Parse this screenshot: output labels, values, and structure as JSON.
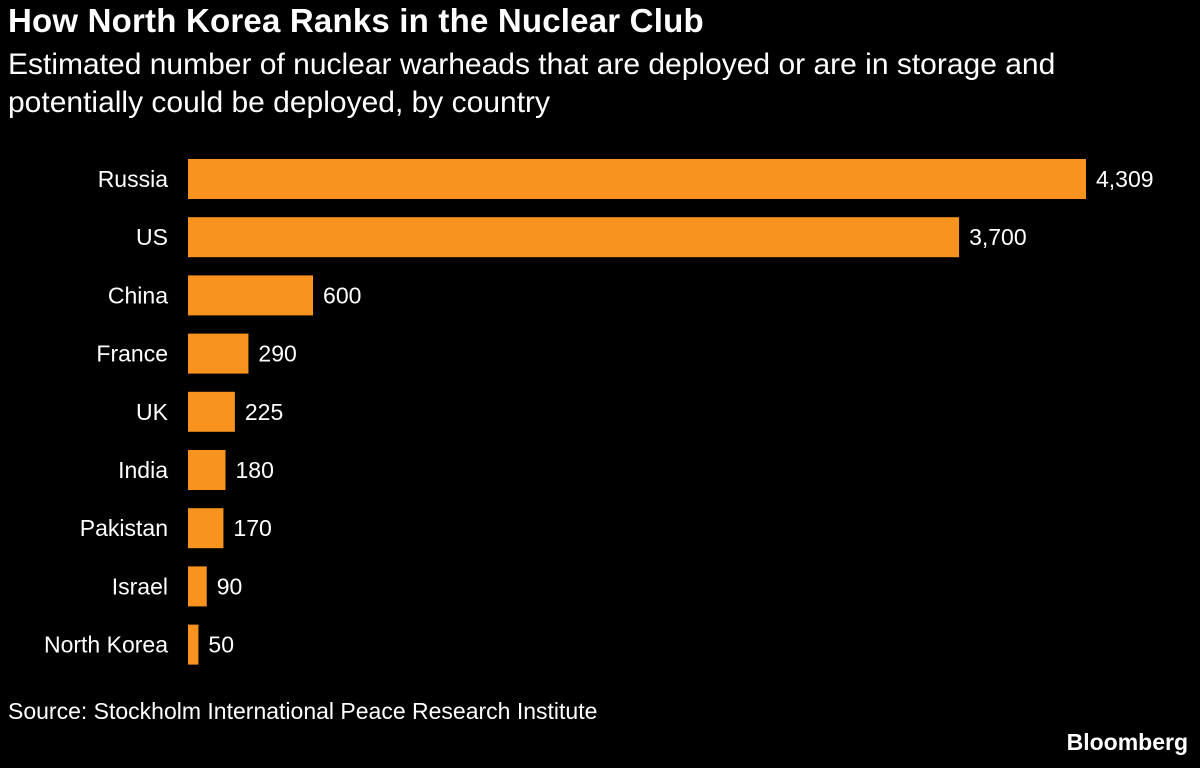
{
  "header": {
    "title": "How North Korea Ranks in the Nuclear Club",
    "subtitle": "Estimated number of nuclear warheads that are deployed or are in storage and potentially could be deployed, by country"
  },
  "footer": {
    "source": "Source: Stockholm International Peace Research Institute",
    "brand": "Bloomberg"
  },
  "colors": {
    "background": "#000000",
    "bar": "#f7931e",
    "text": "#ffffff"
  },
  "chart_data": {
    "type": "bar",
    "orientation": "horizontal",
    "title": "How North Korea Ranks in the Nuclear Club",
    "subtitle": "Estimated number of nuclear warheads that are deployed or are in storage and potentially could be deployed, by country",
    "xlabel": "",
    "ylabel": "",
    "grid": false,
    "legend": "none",
    "xlim": [
      0,
      4309
    ],
    "categories": [
      "Russia",
      "US",
      "China",
      "France",
      "UK",
      "India",
      "Pakistan",
      "Israel",
      "North Korea"
    ],
    "values": [
      4309,
      3700,
      600,
      290,
      225,
      180,
      170,
      90,
      50
    ],
    "value_labels": [
      "4,309",
      "3,700",
      "600",
      "290",
      "225",
      "180",
      "170",
      "90",
      "50"
    ]
  }
}
